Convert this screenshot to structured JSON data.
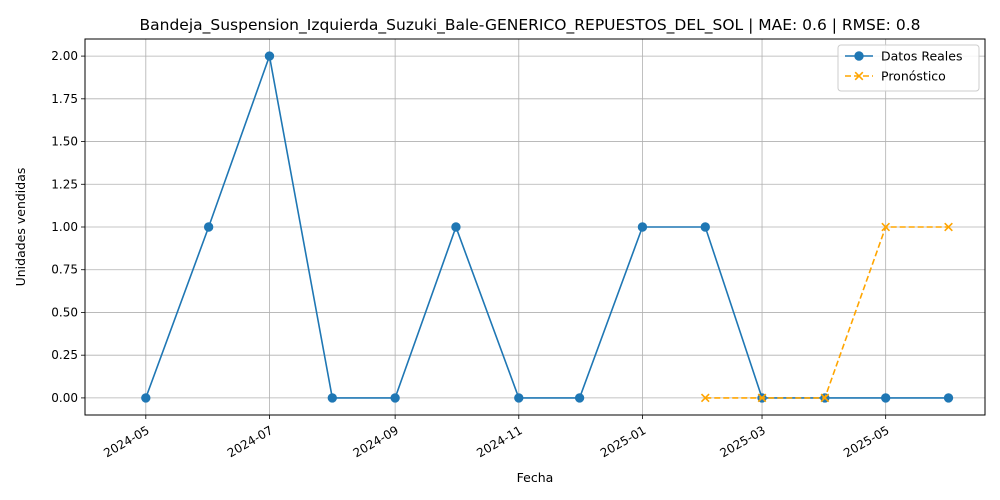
{
  "chart_data": {
    "type": "line",
    "title": "Bandeja_Suspension_Izquierda_Suzuki_Bale-GENERICO_REPUESTOS_DEL_SOL | MAE: 0.6 | RMSE: 0.8",
    "xlabel": "Fecha",
    "ylabel": "Unidades vendidas",
    "xlim": [
      "2024-04-01",
      "2025-06-19"
    ],
    "ylim": [
      -0.1,
      2.1
    ],
    "grid": true,
    "legend_position": "top-right",
    "x_ticks": [
      "2024-05",
      "2024-07",
      "2024-09",
      "2024-11",
      "2025-01",
      "2025-03",
      "2025-05"
    ],
    "y_ticks": [
      "0.00",
      "0.25",
      "0.50",
      "0.75",
      "1.00",
      "1.25",
      "1.50",
      "1.75",
      "2.00"
    ],
    "series": [
      {
        "name": "Datos Reales",
        "color": "#1f77b4",
        "marker": "circle",
        "linestyle": "solid",
        "points": [
          {
            "x": "2024-05-01",
            "y": 0
          },
          {
            "x": "2024-06-01",
            "y": 1
          },
          {
            "x": "2024-07-01",
            "y": 2
          },
          {
            "x": "2024-08-01",
            "y": 0
          },
          {
            "x": "2024-09-01",
            "y": 0
          },
          {
            "x": "2024-10-01",
            "y": 1
          },
          {
            "x": "2024-11-01",
            "y": 0
          },
          {
            "x": "2024-12-01",
            "y": 0
          },
          {
            "x": "2025-01-01",
            "y": 1
          },
          {
            "x": "2025-02-01",
            "y": 1
          },
          {
            "x": "2025-03-01",
            "y": 0
          },
          {
            "x": "2025-04-01",
            "y": 0
          },
          {
            "x": "2025-05-01",
            "y": 0
          },
          {
            "x": "2025-06-01",
            "y": 0
          }
        ]
      },
      {
        "name": "Pronóstico",
        "color": "#ffa500",
        "marker": "x",
        "linestyle": "dashed",
        "points": [
          {
            "x": "2025-02-01",
            "y": 0
          },
          {
            "x": "2025-03-01",
            "y": 0
          },
          {
            "x": "2025-04-01",
            "y": 0
          },
          {
            "x": "2025-05-01",
            "y": 1
          },
          {
            "x": "2025-06-01",
            "y": 1
          }
        ]
      }
    ]
  }
}
